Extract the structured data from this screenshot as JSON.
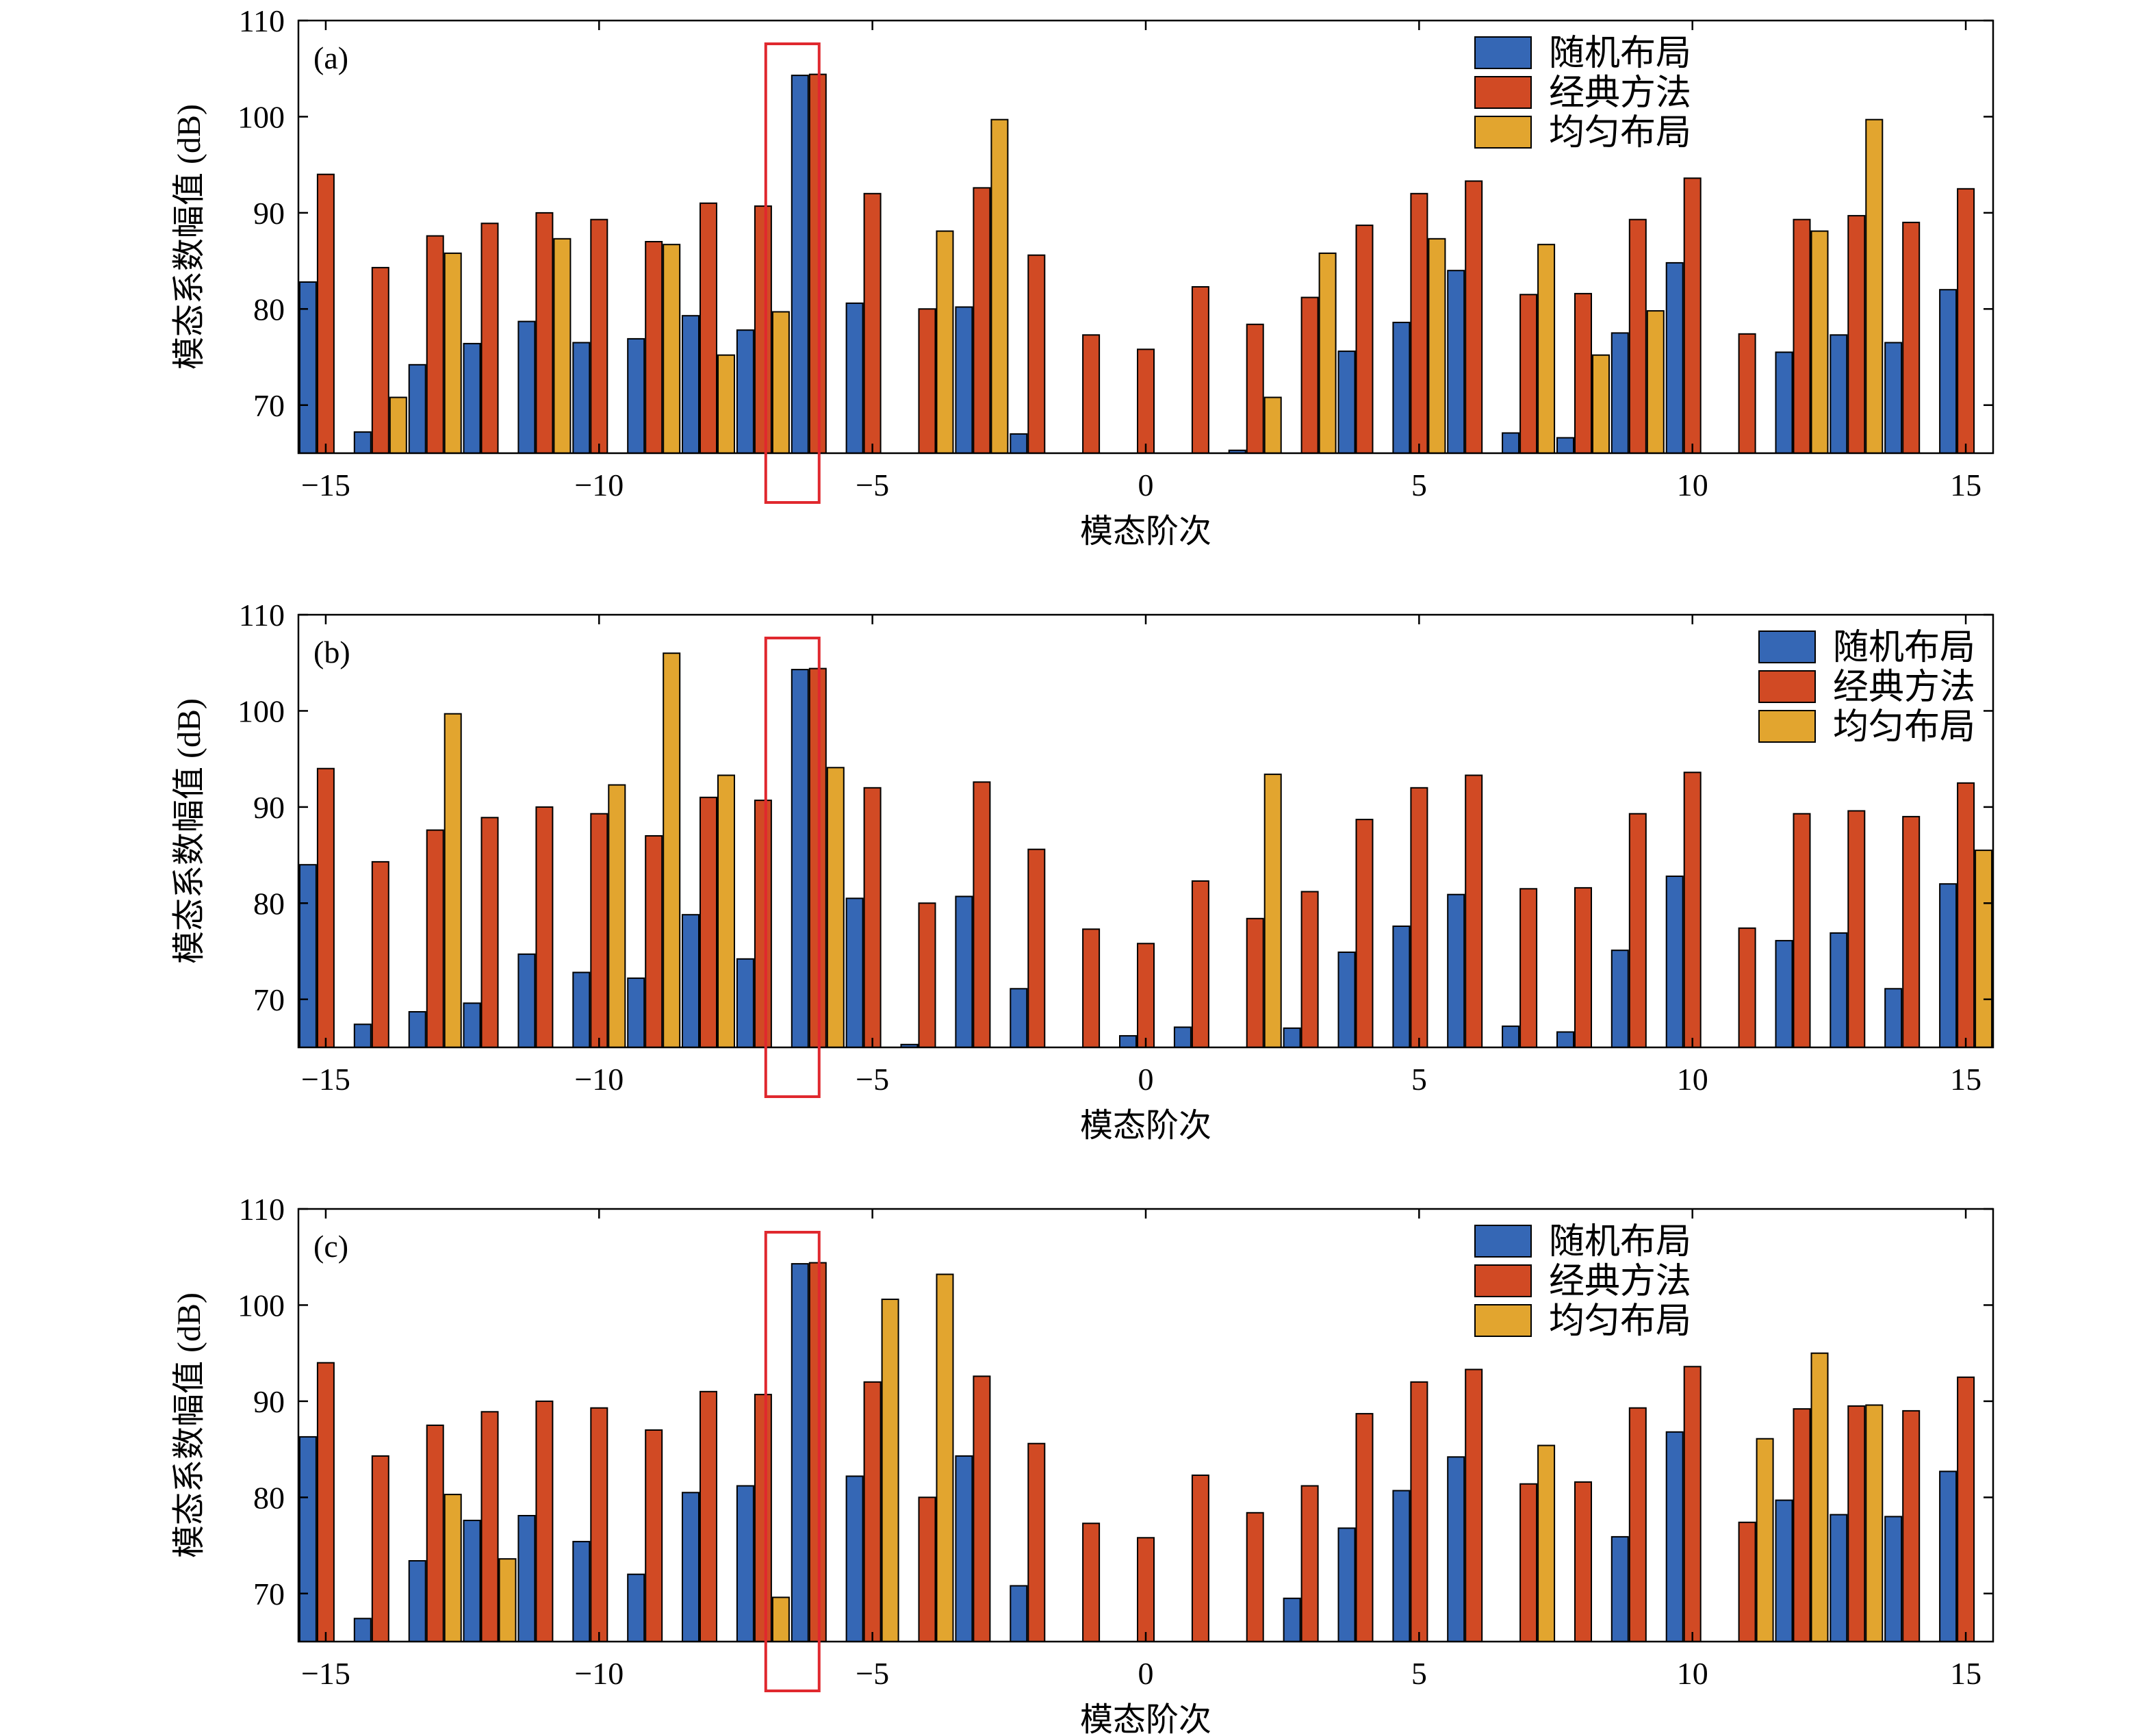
{
  "colors": {
    "random": "#3567B5",
    "classic": "#D14A24",
    "uniform": "#E2A52F",
    "highlight": "#E0282E"
  },
  "chart_data": [
    {
      "type": "bar",
      "panel_label": "(a)",
      "xlabel": "模态阶次",
      "ylabel": "模态系数幅值 (dB)",
      "xlim": [
        -15.5,
        15.5
      ],
      "ylim": [
        65,
        110
      ],
      "xticks": [
        -15,
        -10,
        -5,
        0,
        5,
        10,
        15
      ],
      "yticks": [
        70,
        80,
        90,
        100,
        110
      ],
      "xtick_labels": [
        "−15",
        "−10",
        "−5",
        "0",
        "5",
        "10",
        "15"
      ],
      "ytick_labels": [
        "70",
        "80",
        "90",
        "100",
        "110"
      ],
      "legend_position": "top-right",
      "highlight_order": -6,
      "x": [
        -15,
        -14,
        -13,
        -12,
        -11,
        -10,
        -9,
        -8,
        -7,
        -6,
        -5,
        -4,
        -3,
        -2,
        -1,
        0,
        1,
        2,
        3,
        4,
        5,
        6,
        7,
        8,
        9,
        10,
        11,
        12,
        13,
        14,
        15
      ],
      "series": [
        {
          "name": "随机布局",
          "key": "random",
          "values": [
            82.8,
            67.2,
            74.2,
            76.4,
            78.7,
            76.5,
            76.9,
            79.3,
            77.8,
            104.3,
            80.6,
            null,
            80.2,
            67.0,
            null,
            null,
            null,
            65.3,
            null,
            75.6,
            78.6,
            84.0,
            67.1,
            66.6,
            77.5,
            84.8,
            null,
            75.5,
            77.3,
            76.5,
            82.0
          ]
        },
        {
          "name": "经典方法",
          "key": "classic",
          "values": [
            94.0,
            84.3,
            87.6,
            88.9,
            90.0,
            89.3,
            87.0,
            91.0,
            90.7,
            104.4,
            92.0,
            80.0,
            92.6,
            85.6,
            77.3,
            75.8,
            82.3,
            78.4,
            81.2,
            88.7,
            92.0,
            93.3,
            81.5,
            81.6,
            89.3,
            93.6,
            77.4,
            89.3,
            89.7,
            89.0,
            92.5
          ]
        },
        {
          "name": "均匀布局",
          "key": "uniform",
          "values": [
            null,
            70.8,
            85.8,
            null,
            87.3,
            null,
            86.7,
            75.2,
            79.7,
            null,
            null,
            88.1,
            99.7,
            null,
            null,
            null,
            null,
            70.8,
            85.8,
            null,
            87.3,
            null,
            86.7,
            75.2,
            79.8,
            null,
            null,
            88.1,
            99.7,
            null,
            null
          ]
        }
      ]
    },
    {
      "type": "bar",
      "panel_label": "(b)",
      "xlabel": "模态阶次",
      "ylabel": "模态系数幅值 (dB)",
      "xlim": [
        -15.5,
        15.5
      ],
      "ylim": [
        65,
        110
      ],
      "xticks": [
        -15,
        -10,
        -5,
        0,
        5,
        10,
        15
      ],
      "yticks": [
        70,
        80,
        90,
        100,
        110
      ],
      "xtick_labels": [
        "−15",
        "−10",
        "−5",
        "0",
        "5",
        "10",
        "15"
      ],
      "ytick_labels": [
        "70",
        "80",
        "90",
        "100",
        "110"
      ],
      "legend_position": "top-right",
      "highlight_order": -6,
      "x": [
        -15,
        -14,
        -13,
        -12,
        -11,
        -10,
        -9,
        -8,
        -7,
        -6,
        -5,
        -4,
        -3,
        -2,
        -1,
        0,
        1,
        2,
        3,
        4,
        5,
        6,
        7,
        8,
        9,
        10,
        11,
        12,
        13,
        14,
        15
      ],
      "series": [
        {
          "name": "随机布局",
          "key": "random",
          "values": [
            84.0,
            67.4,
            68.7,
            69.6,
            74.7,
            72.8,
            72.2,
            78.8,
            74.2,
            104.3,
            80.5,
            65.3,
            80.7,
            71.1,
            null,
            66.2,
            67.1,
            null,
            67.0,
            74.9,
            77.6,
            80.9,
            67.2,
            66.6,
            75.1,
            82.8,
            null,
            76.1,
            76.9,
            71.1,
            82.0
          ]
        },
        {
          "name": "经典方法",
          "key": "classic",
          "values": [
            94.0,
            84.3,
            87.6,
            88.9,
            90.0,
            89.3,
            87.0,
            91.0,
            90.7,
            104.4,
            92.0,
            80.0,
            92.6,
            85.6,
            77.3,
            75.8,
            82.3,
            78.4,
            81.2,
            88.7,
            92.0,
            93.3,
            81.5,
            81.6,
            89.3,
            93.6,
            77.4,
            89.3,
            89.6,
            89.0,
            92.5
          ]
        },
        {
          "name": "均匀布局",
          "key": "uniform",
          "values": [
            null,
            null,
            99.7,
            null,
            null,
            92.3,
            106.0,
            93.3,
            null,
            94.1,
            null,
            null,
            null,
            null,
            null,
            null,
            null,
            93.4,
            null,
            null,
            null,
            null,
            null,
            null,
            null,
            null,
            null,
            null,
            null,
            null,
            85.5
          ]
        }
      ]
    },
    {
      "type": "bar",
      "panel_label": "(c)",
      "xlabel": "模态阶次",
      "ylabel": "模态系数幅值 (dB)",
      "xlim": [
        -15.5,
        15.5
      ],
      "ylim": [
        65,
        110
      ],
      "xticks": [
        -15,
        -10,
        -5,
        0,
        5,
        10,
        15
      ],
      "yticks": [
        70,
        80,
        90,
        100,
        110
      ],
      "xtick_labels": [
        "−15",
        "−10",
        "−5",
        "0",
        "5",
        "10",
        "15"
      ],
      "ytick_labels": [
        "70",
        "80",
        "90",
        "100",
        "110"
      ],
      "legend_position": "top-right",
      "highlight_order": -6,
      "x": [
        -15,
        -14,
        -13,
        -12,
        -11,
        -10,
        -9,
        -8,
        -7,
        -6,
        -5,
        -4,
        -3,
        -2,
        -1,
        0,
        1,
        2,
        3,
        4,
        5,
        6,
        7,
        8,
        9,
        10,
        11,
        12,
        13,
        14,
        15
      ],
      "series": [
        {
          "name": "随机布局",
          "key": "random",
          "values": [
            86.3,
            67.4,
            73.4,
            77.6,
            78.1,
            75.4,
            72.0,
            80.5,
            81.2,
            104.3,
            82.2,
            null,
            84.3,
            70.8,
            null,
            null,
            null,
            null,
            69.5,
            76.8,
            80.7,
            84.2,
            null,
            null,
            75.9,
            86.8,
            null,
            79.7,
            78.2,
            78.0,
            82.7
          ]
        },
        {
          "name": "经典方法",
          "key": "classic",
          "values": [
            94.0,
            84.3,
            87.5,
            88.9,
            90.0,
            89.3,
            87.0,
            91.0,
            90.7,
            104.4,
            92.0,
            80.0,
            92.6,
            85.6,
            77.3,
            75.8,
            82.3,
            78.4,
            81.2,
            88.7,
            92.0,
            93.3,
            81.4,
            81.6,
            89.3,
            93.6,
            77.4,
            89.2,
            89.5,
            89.0,
            92.5
          ]
        },
        {
          "name": "均匀布局",
          "key": "uniform",
          "values": [
            null,
            null,
            80.3,
            73.6,
            null,
            null,
            null,
            null,
            69.6,
            null,
            100.6,
            103.2,
            null,
            null,
            null,
            null,
            null,
            null,
            null,
            null,
            null,
            null,
            85.4,
            null,
            null,
            null,
            86.1,
            95.0,
            89.6,
            null,
            null
          ]
        }
      ]
    }
  ]
}
